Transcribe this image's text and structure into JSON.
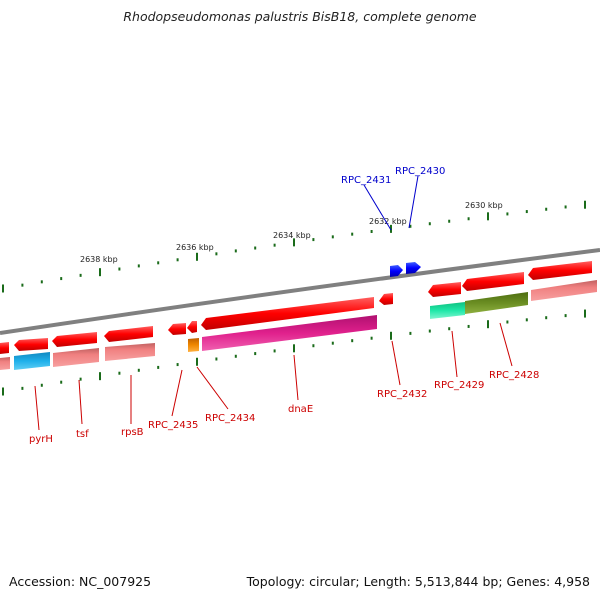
{
  "title": "Rhodopseudomonas palustris BisB18, complete genome",
  "footer": {
    "accession": "Accession: NC_007925",
    "topology": "Topology: circular; Length: 5,513,844 bp; Genes: 4,958"
  },
  "scale_labels": [
    "2638 kbp",
    "2636 kbp",
    "2634 kbp",
    "2632 kbp",
    "2630 kbp"
  ],
  "gene_labels_top": [
    "RPC_2431",
    "RPC_2430"
  ],
  "gene_labels_bottom": [
    "pyrH",
    "tsf",
    "rpsB",
    "RPC_2435",
    "RPC_2434",
    "dnaE",
    "RPC_2432",
    "RPC_2429",
    "RPC_2428"
  ],
  "colors": {
    "backbone": "#808080",
    "gene_red": "#ff0000",
    "gene_blue": "#0000ff",
    "label_red": "#cc0000",
    "label_blue": "#0000cc",
    "tick_green": "#1a6b1a",
    "cog_cyan": "#1fa9e0",
    "cog_salmon": "#f08080",
    "cog_magenta": "#e0208c",
    "cog_orange": "#e67e00",
    "cog_teal": "#20e0a0",
    "cog_olive": "#6b8e23"
  }
}
